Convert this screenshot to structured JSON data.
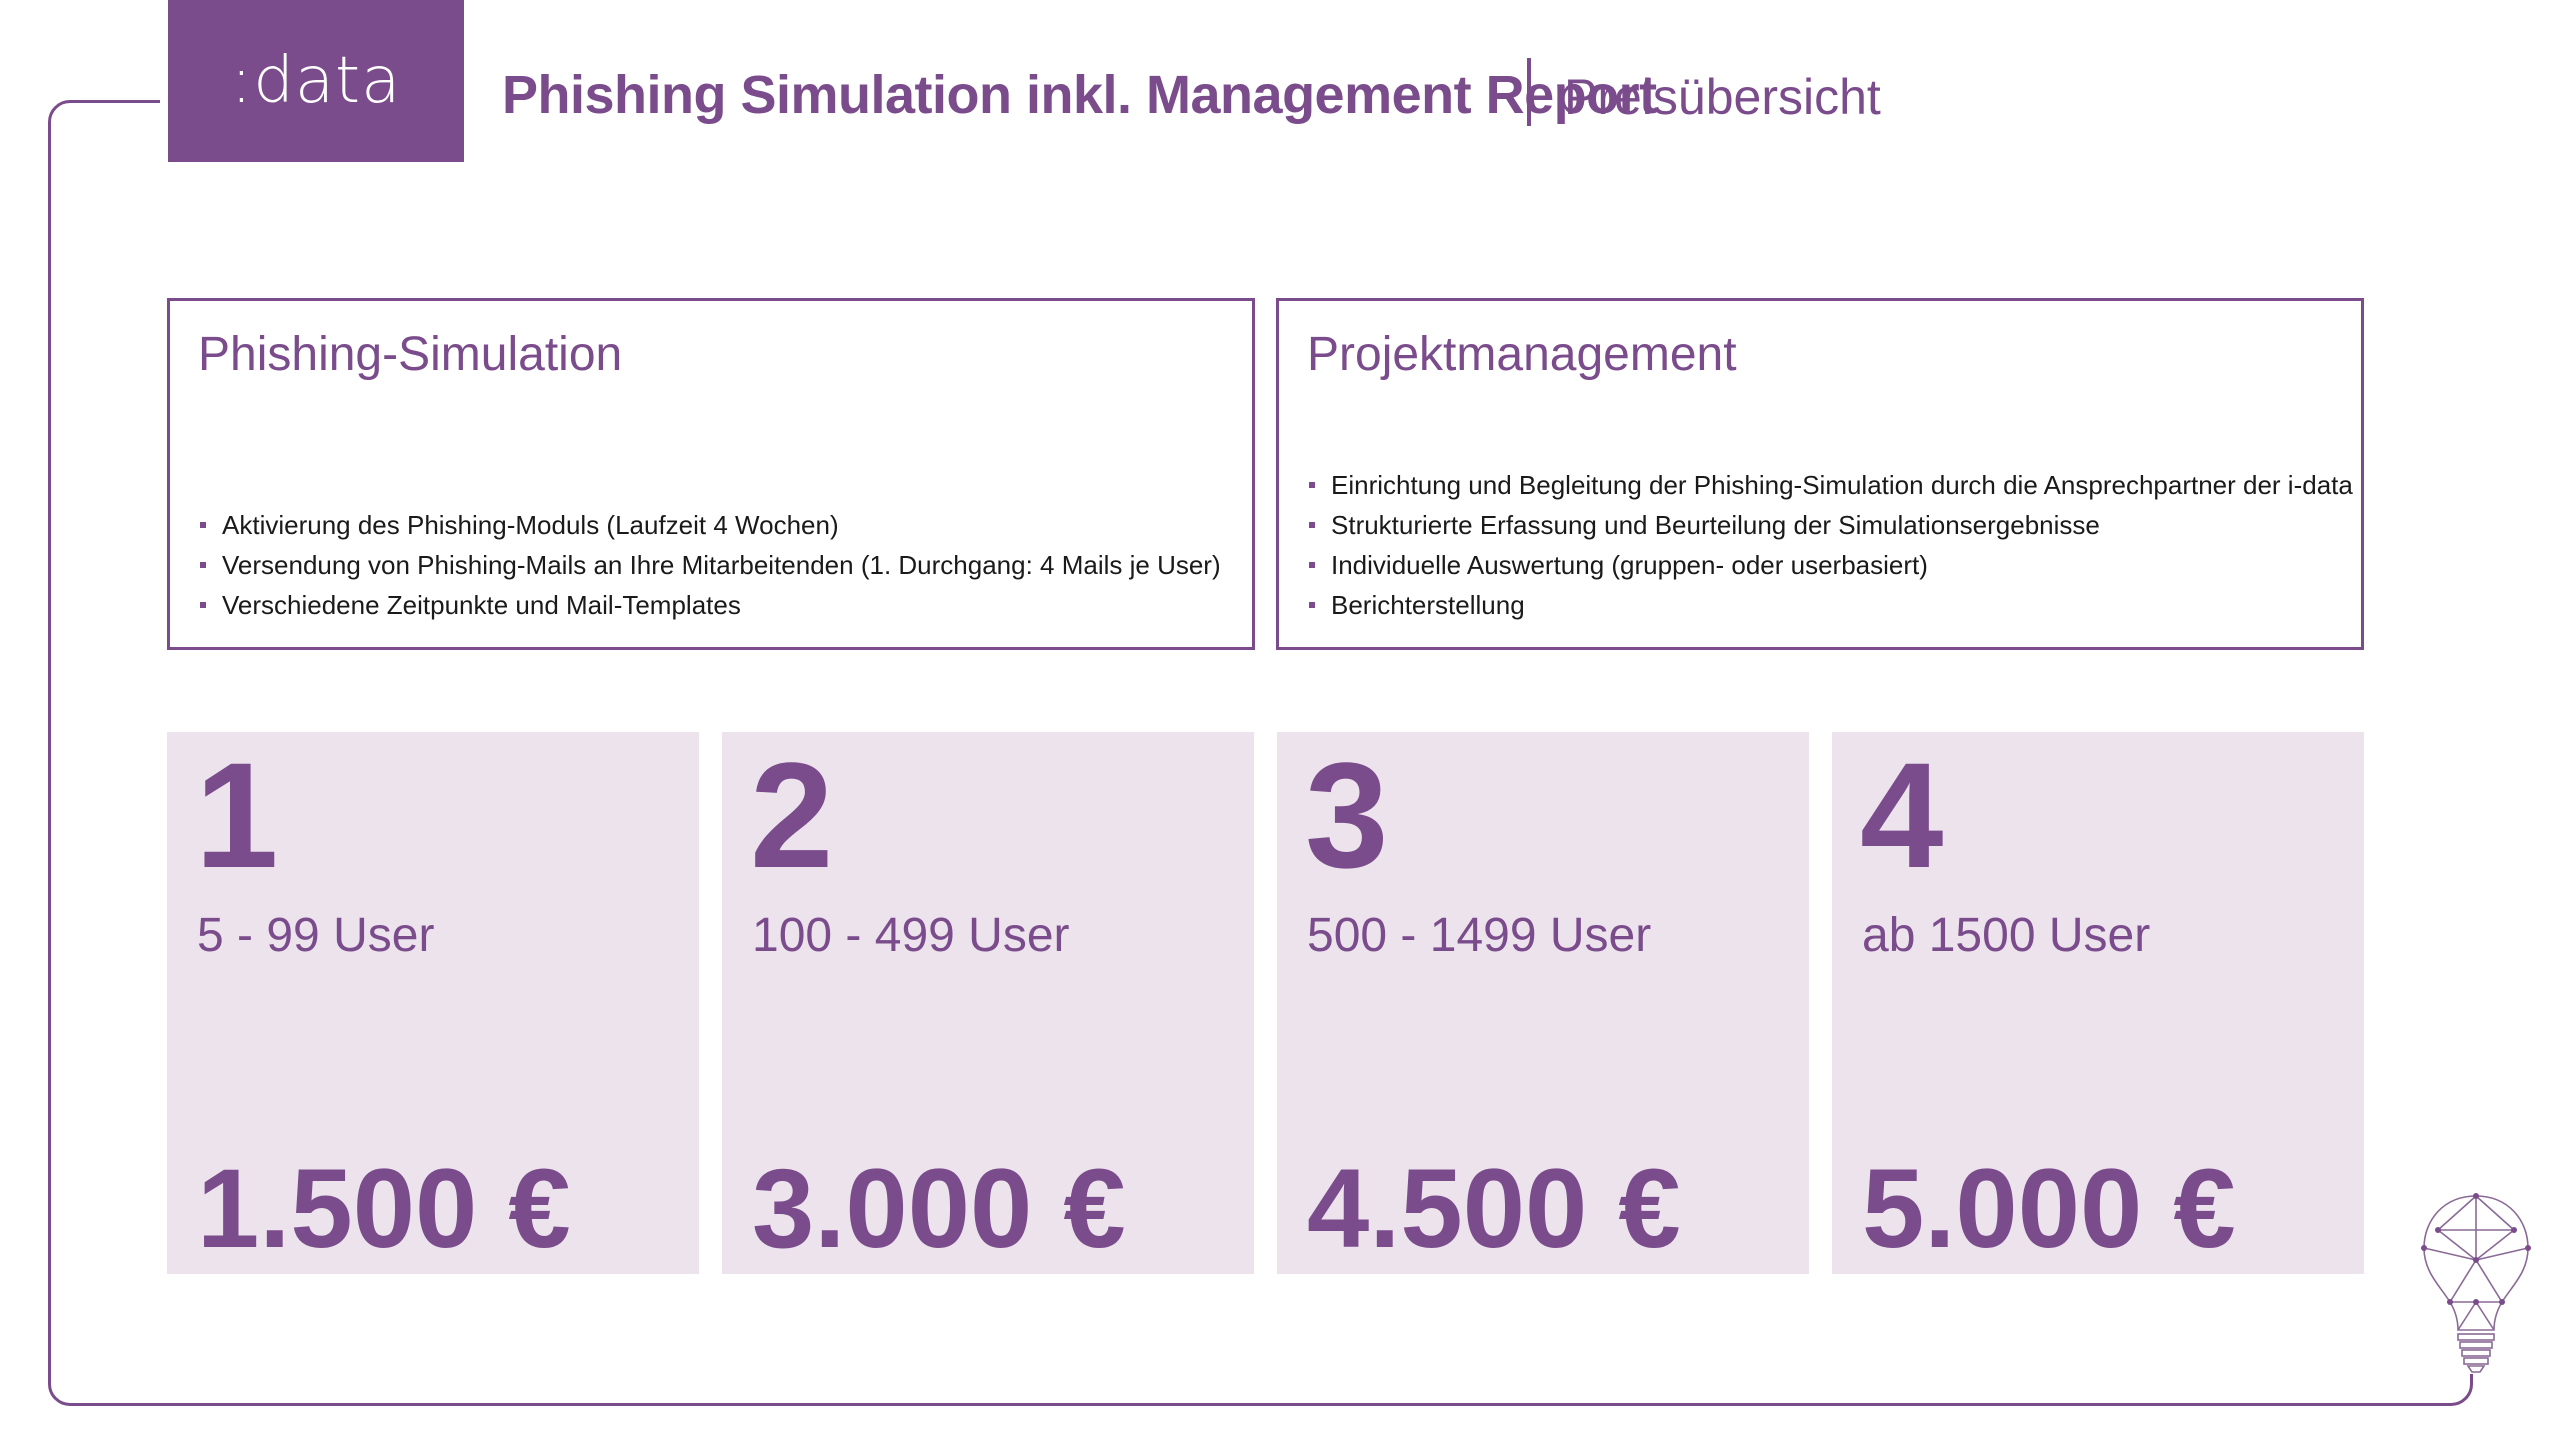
{
  "logo": {
    "text": ":data"
  },
  "header": {
    "title": "Phishing Simulation inkl. Management Report",
    "subtitle": "Preisübersicht"
  },
  "phishing_box": {
    "title": "Phishing-Simulation",
    "items": [
      "Aktivierung des Phishing-Moduls (Laufzeit 4 Wochen)",
      "Versendung von Phishing-Mails an Ihre Mitarbeitenden (1. Durchgang: 4 Mails je User)",
      "Verschiedene Zeitpunkte und Mail-Templates"
    ]
  },
  "project_box": {
    "title": "Projektmanagement",
    "items": [
      "Einrichtung und Begleitung der Phishing-Simulation durch die Ansprechpartner der i-data",
      "Strukturierte Erfassung und Beurteilung der Simulationsergebnisse",
      "Individuelle Auswertung (gruppen- oder userbasiert)",
      "Berichterstellung"
    ]
  },
  "tiers": [
    {
      "number": "1",
      "range": "5 - 99 User",
      "price": "1.500 €"
    },
    {
      "number": "2",
      "range": "100 - 499 User",
      "price": "3.000 €"
    },
    {
      "number": "3",
      "range": "500 - 1499 User",
      "price": "4.500 €"
    },
    {
      "number": "4",
      "range": "ab 1500 User",
      "price": "5.000 €"
    }
  ],
  "colors": {
    "brand": "#7b4c8c",
    "tier_background": "#ece3ed",
    "text": "#1a1a1a"
  },
  "icons": {
    "decoration": "lightbulb-network-icon"
  }
}
